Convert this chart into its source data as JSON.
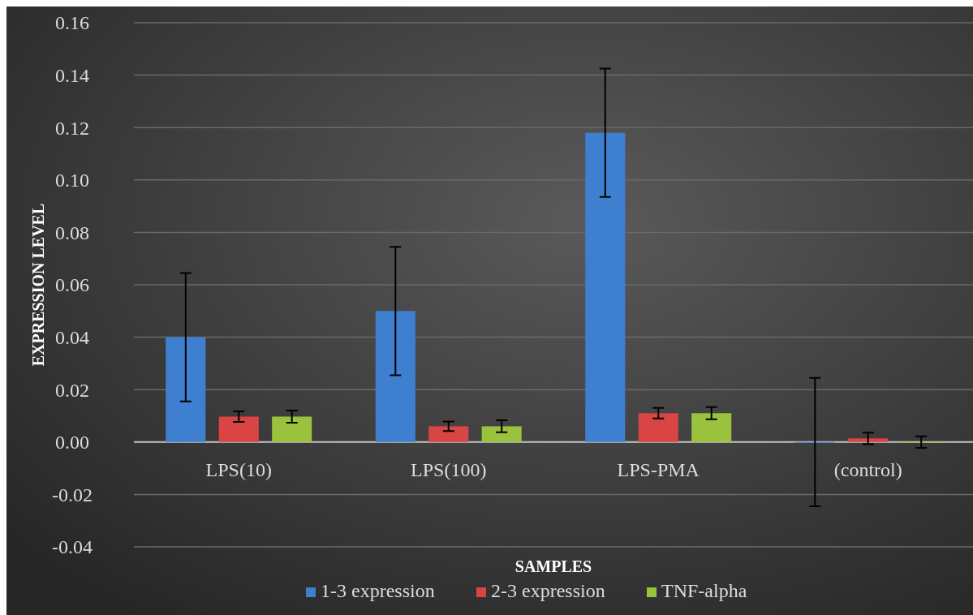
{
  "chart_data": {
    "type": "bar",
    "xlabel": "SAMPLES",
    "ylabel": "EXPRESSION LEVEL",
    "categories": [
      "LPS(10)",
      "LPS(100)",
      "LPS-PMA",
      "(control)"
    ],
    "series": [
      {
        "name": "1-3 expression",
        "color": "#3f7fcf",
        "values": [
          0.04,
          0.05,
          0.118,
          0
        ],
        "errors": [
          0.0245,
          0.0245,
          0.0245,
          0.0245
        ]
      },
      {
        "name": "2-3 expression",
        "color": "#d94545",
        "values": [
          0.0097,
          0.006,
          0.011,
          0.0014
        ],
        "errors": [
          0.002,
          0.0018,
          0.002,
          0.0022
        ]
      },
      {
        "name": "TNF-alpha",
        "color": "#9ac23c",
        "values": [
          0.0097,
          0.006,
          0.011,
          0
        ],
        "errors": [
          0.0023,
          0.0023,
          0.0023,
          0.0022
        ]
      }
    ],
    "ylim": [
      -0.04,
      0.16
    ],
    "yticks": [
      {
        "value": -0.04,
        "label": "-0.04"
      },
      {
        "value": -0.02,
        "label": "-0.02"
      },
      {
        "value": 0,
        "label": "0.00"
      },
      {
        "value": 0.02,
        "label": "0.02"
      },
      {
        "value": 0.04,
        "label": "0.04"
      },
      {
        "value": 0.06,
        "label": "0.06"
      },
      {
        "value": 0.08,
        "label": "0.08"
      },
      {
        "value": 0.1,
        "label": "0.10"
      },
      {
        "value": 0.12,
        "label": "0.12"
      },
      {
        "value": 0.14,
        "label": "0.14"
      },
      {
        "value": 0.16,
        "label": "0.16"
      }
    ],
    "grid": "y",
    "legend": "bottom"
  }
}
